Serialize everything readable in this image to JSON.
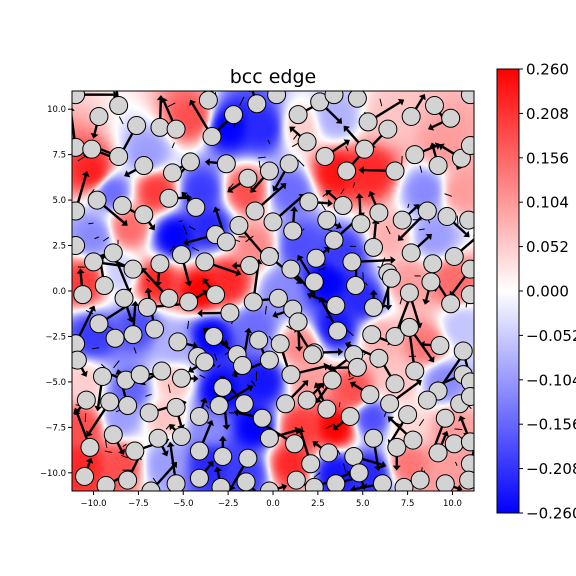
{
  "chart_data": {
    "type": "heatmap",
    "title": "bcc edge",
    "xlabel": "",
    "ylabel": "",
    "xlim": [
      -11.2,
      11.2
    ],
    "ylim": [
      -11.0,
      11.0
    ],
    "x_ticks": [
      -10.0,
      -7.5,
      -5.0,
      -2.5,
      0.0,
      2.5,
      5.0,
      7.5,
      10.0
    ],
    "x_tick_labels": [
      "−10.0",
      "−7.5",
      "−5.0",
      "−2.5",
      "0.0",
      "2.5",
      "5.0",
      "7.5",
      "10.0"
    ],
    "y_ticks": [
      -10.0,
      -7.5,
      -5.0,
      -2.5,
      0.0,
      2.5,
      5.0,
      7.5,
      10.0
    ],
    "y_tick_labels": [
      "−10.0",
      "−7.5",
      "−5.0",
      "−2.5",
      "0.0",
      "2.5",
      "5.0",
      "7.5",
      "10.0"
    ],
    "colormap": "bwr",
    "colors": {
      "low": "#0000ff",
      "mid": "#ffffff",
      "high": "#ff0000"
    },
    "colorbar": {
      "range": [
        -0.26,
        0.26
      ],
      "ticks": [
        0.26,
        0.208,
        0.156,
        0.104,
        0.052,
        0.0,
        -0.052,
        -0.104,
        -0.156,
        -0.208,
        -0.26
      ],
      "tick_labels": [
        "0.260",
        "0.208",
        "0.156",
        "0.104",
        "0.052",
        "0.000",
        "−0.052",
        "−0.104",
        "−0.156",
        "−0.208",
        "−0.260"
      ]
    },
    "grid": false,
    "atoms": [
      [
        -11.0,
        10.8
      ],
      [
        -9.7,
        9.6
      ],
      [
        -8.6,
        10.2
      ],
      [
        -7.6,
        9.1
      ],
      [
        -6.3,
        9.0
      ],
      [
        -5.4,
        8.9
      ],
      [
        -3.6,
        10.5
      ],
      [
        -2.2,
        9.7
      ],
      [
        -0.9,
        10.3
      ],
      [
        0.2,
        10.8
      ],
      [
        1.4,
        9.7
      ],
      [
        2.6,
        10.4
      ],
      [
        3.4,
        10.8
      ],
      [
        4.7,
        10.6
      ],
      [
        5.3,
        9.3
      ],
      [
        6.4,
        8.9
      ],
      [
        7.7,
        9.6
      ],
      [
        9.0,
        10.2
      ],
      [
        9.9,
        9.5
      ],
      [
        11.0,
        10.8
      ],
      [
        -11.0,
        7.9
      ],
      [
        -10.1,
        7.8
      ],
      [
        -8.6,
        7.4
      ],
      [
        -7.2,
        6.9
      ],
      [
        -5.6,
        6.5
      ],
      [
        -4.6,
        7.1
      ],
      [
        -3.4,
        8.5
      ],
      [
        -2.6,
        7.0
      ],
      [
        -1.4,
        6.2
      ],
      [
        -0.2,
        6.6
      ],
      [
        0.9,
        7.0
      ],
      [
        1.9,
        8.2
      ],
      [
        2.9,
        7.4
      ],
      [
        4.1,
        6.6
      ],
      [
        5.1,
        7.8
      ],
      [
        6.8,
        6.6
      ],
      [
        7.9,
        7.5
      ],
      [
        9.2,
        6.9
      ],
      [
        10.5,
        7.3
      ],
      [
        11.0,
        8.0
      ],
      [
        -11.0,
        4.4
      ],
      [
        -9.8,
        5.0
      ],
      [
        -8.4,
        4.7
      ],
      [
        -7.2,
        4.2
      ],
      [
        -5.8,
        5.1
      ],
      [
        -4.3,
        4.6
      ],
      [
        -3.2,
        3.1
      ],
      [
        -1.9,
        3.6
      ],
      [
        -1.0,
        4.4
      ],
      [
        0.0,
        3.8
      ],
      [
        1.1,
        3.3
      ],
      [
        2.0,
        4.9
      ],
      [
        3.0,
        3.9
      ],
      [
        3.9,
        4.7
      ],
      [
        4.9,
        3.7
      ],
      [
        5.9,
        4.3
      ],
      [
        7.2,
        3.9
      ],
      [
        8.6,
        4.4
      ],
      [
        9.7,
        4.1
      ],
      [
        10.9,
        3.9
      ],
      [
        -11.0,
        2.5
      ],
      [
        -10.0,
        1.6
      ],
      [
        -8.9,
        2.1
      ],
      [
        -7.8,
        1.2
      ],
      [
        -6.3,
        1.5
      ],
      [
        -5.1,
        2.0
      ],
      [
        -3.8,
        1.6
      ],
      [
        -2.6,
        2.7
      ],
      [
        -1.3,
        1.4
      ],
      [
        -0.2,
        1.9
      ],
      [
        1.0,
        1.2
      ],
      [
        2.4,
        1.8
      ],
      [
        3.4,
        2.8
      ],
      [
        4.4,
        1.6
      ],
      [
        5.6,
        2.4
      ],
      [
        6.4,
        1.0
      ],
      [
        7.7,
        2.1
      ],
      [
        8.9,
        1.5
      ],
      [
        10.1,
        1.9
      ],
      [
        11.0,
        1.2
      ],
      [
        -10.6,
        -0.2
      ],
      [
        -9.4,
        0.3
      ],
      [
        -8.3,
        -0.4
      ],
      [
        -7.0,
        -0.9
      ],
      [
        -5.8,
        -0.4
      ],
      [
        -4.7,
        -0.6
      ],
      [
        -3.2,
        -0.2
      ],
      [
        -2.4,
        -1.2
      ],
      [
        -1.1,
        -0.6
      ],
      [
        0.3,
        -0.4
      ],
      [
        1.1,
        -1.0
      ],
      [
        2.3,
        0.5
      ],
      [
        3.5,
        -0.8
      ],
      [
        4.6,
        0.3
      ],
      [
        5.6,
        -0.9
      ],
      [
        6.6,
        0.7
      ],
      [
        7.6,
        -0.1
      ],
      [
        8.8,
        0.5
      ],
      [
        9.9,
        -0.7
      ],
      [
        11.0,
        -0.2
      ],
      [
        -11.0,
        -2.9
      ],
      [
        -9.7,
        -1.8
      ],
      [
        -8.8,
        -2.6
      ],
      [
        -7.8,
        -2.4
      ],
      [
        -6.6,
        -2.1
      ],
      [
        -5.3,
        -2.8
      ],
      [
        -4.2,
        -3.6
      ],
      [
        -3.3,
        -2.5
      ],
      [
        -2.0,
        -3.5
      ],
      [
        -0.8,
        -2.7
      ],
      [
        0.4,
        -2.9
      ],
      [
        1.4,
        -1.7
      ],
      [
        2.3,
        -3.4
      ],
      [
        3.6,
        -2.2
      ],
      [
        4.5,
        -3.5
      ],
      [
        5.5,
        -2.4
      ],
      [
        6.8,
        -2.5
      ],
      [
        7.6,
        -2.0
      ],
      [
        9.3,
        -3.0
      ],
      [
        10.6,
        -3.3
      ],
      [
        -10.9,
        -3.8
      ],
      [
        -9.5,
        -4.7
      ],
      [
        -8.2,
        -4.9
      ],
      [
        -7.4,
        -4.6
      ],
      [
        -6.2,
        -4.4
      ],
      [
        -5.1,
        -4.8
      ],
      [
        -3.8,
        -3.9
      ],
      [
        -2.8,
        -5.3
      ],
      [
        -1.7,
        -4.1
      ],
      [
        -0.2,
        -3.8
      ],
      [
        1.0,
        -4.6
      ],
      [
        2.2,
        -3.5
      ],
      [
        3.3,
        -4.9
      ],
      [
        4.7,
        -4.2
      ],
      [
        5.9,
        -3.7
      ],
      [
        6.8,
        -5.1
      ],
      [
        7.9,
        -4.4
      ],
      [
        9.2,
        -5.5
      ],
      [
        10.6,
        -4.6
      ],
      [
        11.0,
        -5.0
      ],
      [
        -10.4,
        -6.0
      ],
      [
        -9.1,
        -6.1
      ],
      [
        -8.1,
        -6.3
      ],
      [
        -6.9,
        -6.7
      ],
      [
        -5.4,
        -6.4
      ],
      [
        -4.1,
        -6.9
      ],
      [
        -3.0,
        -6.3
      ],
      [
        -1.6,
        -6.2
      ],
      [
        -0.6,
        -7.0
      ],
      [
        0.7,
        -6.2
      ],
      [
        1.9,
        -6.0
      ],
      [
        3.0,
        -6.5
      ],
      [
        4.3,
        -6.9
      ],
      [
        5.4,
        -5.7
      ],
      [
        6.5,
        -6.2
      ],
      [
        7.5,
        -6.8
      ],
      [
        8.6,
        -6.0
      ],
      [
        9.6,
        -7.0
      ],
      [
        10.4,
        -6.2
      ],
      [
        11.0,
        -5.8
      ],
      [
        -10.2,
        -8.6
      ],
      [
        -8.9,
        -7.9
      ],
      [
        -7.7,
        -8.8
      ],
      [
        -6.4,
        -8.1
      ],
      [
        -5.1,
        -8.0
      ],
      [
        -4.1,
        -8.8
      ],
      [
        -2.8,
        -9.1
      ],
      [
        -1.4,
        -9.2
      ],
      [
        -0.2,
        -8.1
      ],
      [
        1.2,
        -8.4
      ],
      [
        2.1,
        -9.5
      ],
      [
        3.1,
        -8.9
      ],
      [
        4.5,
        -9.1
      ],
      [
        5.6,
        -8.1
      ],
      [
        6.9,
        -8.6
      ],
      [
        7.8,
        -8.2
      ],
      [
        9.2,
        -8.9
      ],
      [
        10.1,
        -8.4
      ],
      [
        11.0,
        -8.3
      ],
      [
        11.0,
        -9.5
      ],
      [
        -10.5,
        -10.2
      ],
      [
        -9.3,
        -10.7
      ],
      [
        -8.1,
        -10.4
      ],
      [
        -6.8,
        -11.0
      ],
      [
        -5.4,
        -10.6
      ],
      [
        -4.1,
        -10.3
      ],
      [
        -2.9,
        -10.8
      ],
      [
        -1.5,
        -10.5
      ],
      [
        -0.2,
        -11.0
      ],
      [
        1.3,
        -10.4
      ],
      [
        2.3,
        -10.8
      ],
      [
        3.5,
        -10.6
      ],
      [
        4.8,
        -10.0
      ],
      [
        6.1,
        -10.6
      ],
      [
        7.3,
        -10.8
      ],
      [
        8.2,
        -10.4
      ],
      [
        9.6,
        -10.6
      ],
      [
        10.9,
        -10.4
      ]
    ],
    "field_seeds": [
      [
        -10.0,
        6.5,
        0.23
      ],
      [
        -7.0,
        7.5,
        -0.1
      ],
      [
        -4.5,
        9.5,
        0.18
      ],
      [
        -2.5,
        9.0,
        -0.26
      ],
      [
        -0.5,
        9.0,
        -0.22
      ],
      [
        1.5,
        9.0,
        0.05
      ],
      [
        3.5,
        9.5,
        -0.08
      ],
      [
        6.5,
        9.5,
        0.06
      ],
      [
        9.5,
        8.0,
        0.1
      ],
      [
        -9.0,
        5.5,
        -0.15
      ],
      [
        -6.5,
        5.5,
        0.2
      ],
      [
        -4.0,
        5.5,
        -0.2
      ],
      [
        -1.5,
        5.5,
        0.18
      ],
      [
        1.0,
        5.5,
        -0.15
      ],
      [
        3.5,
        6.5,
        0.24
      ],
      [
        5.5,
        6.5,
        0.22
      ],
      [
        8.5,
        5.5,
        -0.12
      ],
      [
        10.5,
        5.5,
        0.1
      ],
      [
        -10.0,
        3.0,
        -0.12
      ],
      [
        -8.0,
        3.5,
        0.15
      ],
      [
        -5.5,
        3.0,
        -0.26
      ],
      [
        -3.5,
        3.5,
        -0.22
      ],
      [
        -1.0,
        2.5,
        0.12
      ],
      [
        1.5,
        2.5,
        -0.18
      ],
      [
        4.0,
        2.0,
        -0.2
      ],
      [
        6.5,
        3.0,
        0.08
      ],
      [
        9.0,
        3.0,
        -0.1
      ],
      [
        -10.5,
        0.5,
        0.2
      ],
      [
        -8.5,
        1.0,
        -0.05
      ],
      [
        -6.5,
        0.5,
        0.22
      ],
      [
        -4.0,
        0.0,
        0.26
      ],
      [
        -2.5,
        0.5,
        0.22
      ],
      [
        0.5,
        0.0,
        -0.12
      ],
      [
        3.0,
        0.5,
        -0.26
      ],
      [
        5.0,
        -0.5,
        -0.22
      ],
      [
        7.5,
        0.5,
        0.1
      ],
      [
        10.0,
        0.5,
        0.15
      ],
      [
        -10.0,
        -2.5,
        -0.2
      ],
      [
        -7.5,
        -2.0,
        -0.18
      ],
      [
        -5.5,
        -3.0,
        -0.08
      ],
      [
        -3.5,
        -2.5,
        -0.26
      ],
      [
        -1.0,
        -2.0,
        -0.15
      ],
      [
        1.5,
        -3.0,
        0.12
      ],
      [
        3.5,
        -2.0,
        -0.24
      ],
      [
        6.0,
        -2.5,
        0.08
      ],
      [
        8.5,
        -3.0,
        0.14
      ],
      [
        10.5,
        -2.0,
        -0.06
      ],
      [
        -10.5,
        -5.0,
        0.05
      ],
      [
        -8.0,
        -5.5,
        -0.16
      ],
      [
        -5.5,
        -5.0,
        0.06
      ],
      [
        -3.0,
        -5.5,
        -0.26
      ],
      [
        -0.5,
        -5.0,
        -0.24
      ],
      [
        2.0,
        -5.0,
        0.1
      ],
      [
        4.5,
        -5.5,
        0.18
      ],
      [
        7.0,
        -5.0,
        0.06
      ],
      [
        9.5,
        -5.0,
        -0.12
      ],
      [
        -10.5,
        -7.5,
        0.18
      ],
      [
        -8.5,
        -7.0,
        -0.1
      ],
      [
        -6.0,
        -7.0,
        0.06
      ],
      [
        -3.5,
        -7.5,
        -0.12
      ],
      [
        -1.0,
        -7.5,
        -0.26
      ],
      [
        1.5,
        -7.5,
        0.2
      ],
      [
        3.5,
        -7.5,
        0.26
      ],
      [
        5.5,
        -7.0,
        -0.18
      ],
      [
        7.5,
        -7.5,
        0.04
      ],
      [
        10.0,
        -7.5,
        0.1
      ],
      [
        -10.5,
        -9.5,
        0.22
      ],
      [
        -8.5,
        -9.5,
        0.18
      ],
      [
        -6.0,
        -9.5,
        -0.1
      ],
      [
        -3.5,
        -9.5,
        -0.22
      ],
      [
        -1.5,
        -10.0,
        -0.2
      ],
      [
        1.0,
        -9.5,
        0.22
      ],
      [
        3.5,
        -10.0,
        -0.24
      ],
      [
        5.5,
        -10.0,
        -0.22
      ],
      [
        7.5,
        -9.5,
        0.14
      ],
      [
        10.0,
        -10.0,
        0.1
      ]
    ]
  }
}
